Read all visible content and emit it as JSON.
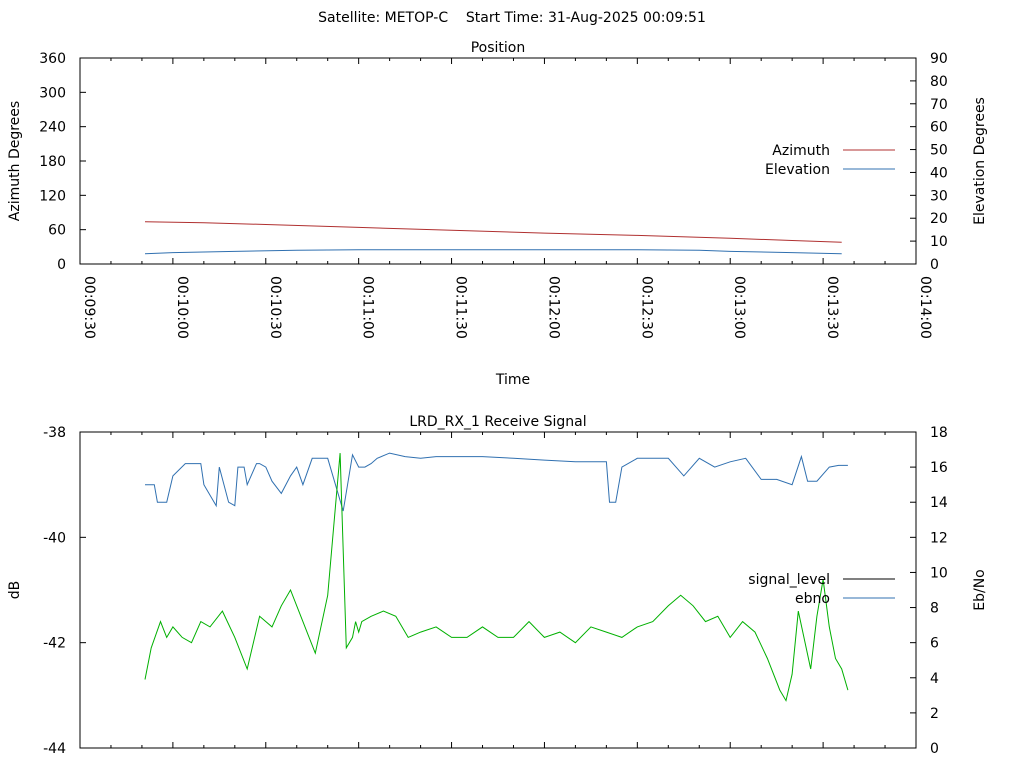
{
  "header": {
    "title": "Satellite: METOP-C    Start Time: 31-Aug-2025 00:09:51"
  },
  "chart_data": [
    {
      "type": "line",
      "title": "Position",
      "xlabel": "Time",
      "ylabel": "Azimuth Degrees",
      "y2label": "Elevation Degrees",
      "xlim": [
        "00:09:30",
        "00:14:00"
      ],
      "ylim": [
        0,
        360
      ],
      "y2lim": [
        0,
        90
      ],
      "xticks": [
        "00:09:30",
        "00:10:00",
        "00:10:30",
        "00:11:00",
        "00:11:30",
        "00:12:00",
        "00:12:30",
        "00:13:00",
        "00:13:30",
        "00:14:00"
      ],
      "yticks": [
        0,
        60,
        120,
        180,
        240,
        300,
        360
      ],
      "y2ticks": [
        0,
        10,
        20,
        30,
        40,
        50,
        60,
        70,
        80,
        90
      ],
      "legend_position": "right",
      "series": [
        {
          "name": "Azimuth",
          "axis": "y",
          "color": "#b03030",
          "x": [
            "00:09:51",
            "00:10:10",
            "00:10:30",
            "00:11:00",
            "00:11:30",
            "00:12:00",
            "00:12:30",
            "00:13:00",
            "00:13:20",
            "00:13:36"
          ],
          "values": [
            74,
            72,
            69,
            64,
            59,
            54,
            50,
            45,
            41,
            38
          ]
        },
        {
          "name": "Elevation",
          "axis": "y2",
          "color": "#3070b0",
          "x": [
            "00:09:51",
            "00:10:00",
            "00:10:20",
            "00:10:40",
            "00:11:00",
            "00:11:30",
            "00:12:00",
            "00:12:30",
            "00:12:50",
            "00:13:00",
            "00:13:20",
            "00:13:36"
          ],
          "values": [
            4.5,
            5,
            5.5,
            6,
            6.2,
            6.2,
            6.2,
            6.2,
            6,
            5.5,
            5,
            4.5
          ]
        }
      ]
    },
    {
      "type": "line",
      "title": "LRD_RX_1 Receive Signal",
      "xlabel": "",
      "ylabel": "dB",
      "y2label": "Eb/No",
      "xlim": [
        "00:09:30",
        "00:14:00"
      ],
      "ylim": [
        -44,
        -38
      ],
      "y2lim": [
        0,
        18
      ],
      "yticks": [
        -44,
        -42,
        -40,
        -38
      ],
      "y2ticks": [
        0,
        2,
        4,
        6,
        8,
        10,
        12,
        14,
        16,
        18
      ],
      "legend_position": "right",
      "series": [
        {
          "name": "signal_level",
          "axis": "y",
          "color": "#000000",
          "x": [],
          "values": []
        },
        {
          "name": "ebno",
          "axis": "y2",
          "color": "#3070b0",
          "x": [
            "00:09:51",
            "00:09:54",
            "00:09:55",
            "00:09:58",
            "00:10:00",
            "00:10:04",
            "00:10:09",
            "00:10:10",
            "00:10:14",
            "00:10:15",
            "00:10:18",
            "00:10:20",
            "00:10:21",
            "00:10:23",
            "00:10:24",
            "00:10:27",
            "00:10:28",
            "00:10:30",
            "00:10:32",
            "00:10:35",
            "00:10:38",
            "00:10:40",
            "00:10:42",
            "00:10:45",
            "00:10:50",
            "00:10:55",
            "00:10:58",
            "00:11:00",
            "00:11:02",
            "00:11:04",
            "00:11:06",
            "00:11:10",
            "00:11:15",
            "00:11:20",
            "00:11:25",
            "00:11:30",
            "00:11:40",
            "00:11:50",
            "00:12:00",
            "00:12:10",
            "00:12:20",
            "00:12:21",
            "00:12:23",
            "00:12:25",
            "00:12:30",
            "00:12:40",
            "00:12:45",
            "00:12:50",
            "00:12:55",
            "00:13:00",
            "00:13:05",
            "00:13:10",
            "00:13:15",
            "00:13:20",
            "00:13:23",
            "00:13:25",
            "00:13:28",
            "00:13:32",
            "00:13:35",
            "00:13:38"
          ],
          "values": [
            15,
            15,
            14,
            14,
            15.5,
            16.2,
            16.2,
            15,
            13.8,
            16,
            14,
            13.8,
            16,
            16,
            15,
            16.2,
            16.2,
            16,
            15.2,
            14.5,
            15.5,
            16,
            15,
            16.5,
            16.5,
            13.5,
            16.7,
            16,
            16,
            16.2,
            16.5,
            16.8,
            16.6,
            16.5,
            16.6,
            16.6,
            16.6,
            16.5,
            16.4,
            16.3,
            16.3,
            14,
            14,
            16,
            16.5,
            16.5,
            15.5,
            16.5,
            16,
            16.3,
            16.5,
            15.3,
            15.3,
            15,
            16.6,
            15.2,
            15.2,
            16,
            16.1,
            16.1
          ]
        },
        {
          "name": "",
          "axis": "y",
          "color": "#00b000",
          "x": [
            "00:09:51",
            "00:09:53",
            "00:09:56",
            "00:09:58",
            "00:10:00",
            "00:10:03",
            "00:10:06",
            "00:10:09",
            "00:10:12",
            "00:10:16",
            "00:10:20",
            "00:10:24",
            "00:10:28",
            "00:10:32",
            "00:10:35",
            "00:10:38",
            "00:10:42",
            "00:10:46",
            "00:10:50",
            "00:10:54",
            "00:10:56",
            "00:10:58",
            "00:10:59",
            "00:11:00",
            "00:11:01",
            "00:11:04",
            "00:11:08",
            "00:11:12",
            "00:11:16",
            "00:11:20",
            "00:11:25",
            "00:11:30",
            "00:11:35",
            "00:11:40",
            "00:11:45",
            "00:11:50",
            "00:11:55",
            "00:12:00",
            "00:12:05",
            "00:12:10",
            "00:12:15",
            "00:12:20",
            "00:12:25",
            "00:12:30",
            "00:12:35",
            "00:12:40",
            "00:12:44",
            "00:12:48",
            "00:12:52",
            "00:12:56",
            "00:13:00",
            "00:13:04",
            "00:13:08",
            "00:13:12",
            "00:13:16",
            "00:13:18",
            "00:13:20",
            "00:13:22",
            "00:13:26",
            "00:13:28",
            "00:13:30",
            "00:13:32",
            "00:13:34",
            "00:13:36",
            "00:13:38"
          ],
          "values": [
            -42.7,
            -42.1,
            -41.6,
            -41.9,
            -41.7,
            -41.9,
            -42.0,
            -41.6,
            -41.7,
            -41.4,
            -41.9,
            -42.5,
            -41.5,
            -41.7,
            -41.3,
            -41.0,
            -41.6,
            -42.2,
            -41.1,
            -38.4,
            -42.1,
            -41.9,
            -41.6,
            -41.8,
            -41.6,
            -41.5,
            -41.4,
            -41.5,
            -41.9,
            -41.8,
            -41.7,
            -41.9,
            -41.9,
            -41.7,
            -41.9,
            -41.9,
            -41.6,
            -41.9,
            -41.8,
            -42.0,
            -41.7,
            -41.8,
            -41.9,
            -41.7,
            -41.6,
            -41.3,
            -41.1,
            -41.3,
            -41.6,
            -41.5,
            -41.9,
            -41.6,
            -41.8,
            -42.3,
            -42.9,
            -43.1,
            -42.6,
            -41.4,
            -42.5,
            -41.5,
            -40.8,
            -41.7,
            -42.3,
            -42.5,
            -42.9
          ]
        }
      ]
    }
  ]
}
